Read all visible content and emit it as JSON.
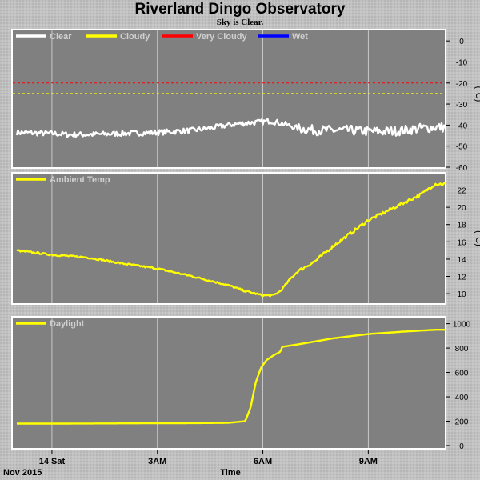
{
  "title": "Riverland Dingo Observatory",
  "subtitle": "Sky is Clear.",
  "colors": {
    "plot_bg": "#808080",
    "grid": "#d8d8d8",
    "clear": "#ffffff",
    "cloudy": "#ffff00",
    "very_cloudy": "#ff0000",
    "wet": "#0000ff",
    "legend_text": "#d0d0d0"
  },
  "chart_data": [
    {
      "id": "sky",
      "type": "line",
      "ylabel": "(°C)",
      "ylim": [
        -60,
        5
      ],
      "yticks": [
        0,
        -10,
        -20,
        -30,
        -40,
        -50,
        -60
      ],
      "legend": [
        {
          "name": "Clear",
          "color": "#ffffff"
        },
        {
          "name": "Cloudy",
          "color": "#ffff00"
        },
        {
          "name": "Very Cloudy",
          "color": "#ff0000"
        },
        {
          "name": "Wet",
          "color": "#0000ff"
        }
      ],
      "thresholds": [
        {
          "value": -20,
          "color": "#ff0000"
        },
        {
          "value": -25,
          "color": "#ffff00"
        }
      ],
      "series": [
        {
          "name": "Clear",
          "color": "#ffffff",
          "noise": 1.3,
          "x": [
            -1,
            0,
            0.5,
            1,
            2,
            3,
            4,
            4.5,
            5,
            5.5,
            6,
            6.2,
            6.5,
            7,
            7.5,
            8,
            8.5,
            9,
            9.5,
            10,
            10.5,
            10.9
          ],
          "y": [
            -43.5,
            -44,
            -44.5,
            -44.5,
            -44,
            -43.5,
            -42.5,
            -41.5,
            -40,
            -39,
            -38.5,
            -38,
            -39,
            -41.5,
            -42.5,
            -42.5,
            -42.5,
            -43,
            -43,
            -42.5,
            -41.5,
            -41
          ]
        }
      ]
    },
    {
      "id": "ambient",
      "type": "line",
      "ylabel": "(°C)",
      "ylim": [
        8.9,
        23.9
      ],
      "yticks": [
        22,
        20,
        18,
        16,
        14,
        12,
        10
      ],
      "legend": [
        {
          "name": "Ambient Temp",
          "color": "#ffff00"
        }
      ],
      "series": [
        {
          "name": "Ambient Temp",
          "color": "#ffff00",
          "noise": 0.1,
          "x": [
            -1,
            0,
            1,
            2,
            3,
            4,
            5,
            5.5,
            6,
            6.3,
            6.5,
            6.8,
            7,
            7.5,
            8,
            8.5,
            9,
            9.5,
            10,
            10.5,
            10.9
          ],
          "y": [
            15,
            14.5,
            14.2,
            13.5,
            12.9,
            12,
            11,
            10.3,
            9.8,
            9.8,
            10.3,
            11.8,
            12.6,
            13.8,
            15.5,
            17,
            18.5,
            19.5,
            20.5,
            21.5,
            22.7
          ]
        }
      ]
    },
    {
      "id": "daylight",
      "type": "line",
      "ylabel": "",
      "ylim": [
        -20,
        1050
      ],
      "yticks": [
        1000,
        800,
        600,
        400,
        200,
        0
      ],
      "legend": [
        {
          "name": "Daylight",
          "color": "#ffff00"
        }
      ],
      "series": [
        {
          "name": "Daylight",
          "color": "#ffff00",
          "noise": 0,
          "x": [
            -1,
            0,
            2,
            4,
            5,
            5.5,
            5.65,
            5.8,
            5.95,
            6.1,
            6.3,
            6.5,
            6.55,
            7,
            8,
            9,
            10,
            10.9
          ],
          "y": [
            180,
            180,
            182,
            184,
            186,
            200,
            310,
            520,
            640,
            700,
            740,
            770,
            810,
            830,
            880,
            915,
            935,
            950
          ]
        }
      ]
    }
  ],
  "x_axis": {
    "label": "Time",
    "date_label": "Nov 2015",
    "range_hours": [
      -1,
      11.2
    ],
    "ticks": [
      {
        "hours": 0,
        "label": "14 Sat"
      },
      {
        "hours": 3,
        "label": "3AM"
      },
      {
        "hours": 6,
        "label": "6AM"
      },
      {
        "hours": 9,
        "label": "9AM"
      }
    ]
  }
}
